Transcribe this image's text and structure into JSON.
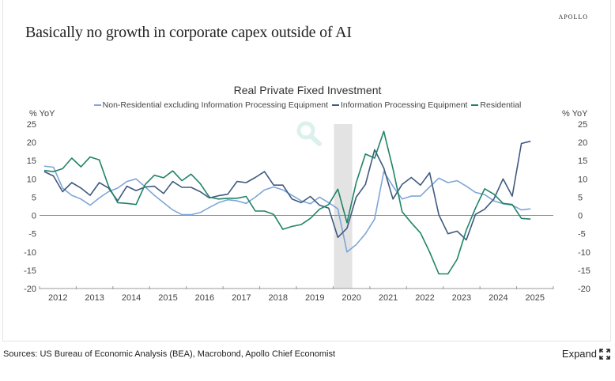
{
  "brand": "APOLLO",
  "headline": "Basically no growth in corporate capex outside of AI",
  "sources": "Sources: US Bureau of Economic Analysis (BEA), Macrobond, Apollo Chief Economist",
  "expand_label": "Expand",
  "colors": {
    "non_residential": "#7ea6d8",
    "info_processing": "#3f5a7f",
    "residential": "#1f8466",
    "recession_band": "#e3e3e3",
    "zero_line": "#8c8c8c",
    "watermark": "#d9f0ec"
  },
  "chart_data": {
    "type": "line",
    "title": "Real Private Fixed Investment",
    "ylabel_left": "% YoY",
    "ylabel_right": "% YoY",
    "xlabel": "",
    "ylim": [
      -20,
      25
    ],
    "yticks": [
      25,
      20,
      15,
      10,
      5,
      0,
      -5,
      -10,
      -15,
      -20
    ],
    "xlim": [
      "2012Q1",
      "2025Q4"
    ],
    "xticks": [
      "2012",
      "2013",
      "2014",
      "2015",
      "2016",
      "2017",
      "2018",
      "2019",
      "2020",
      "2021",
      "2022",
      "2023",
      "2024",
      "2025"
    ],
    "grid": false,
    "legend_position": "top",
    "shaded_regions": [
      {
        "label": "recession",
        "from": "2020Q1",
        "to": "2020Q2"
      }
    ],
    "x": [
      "2012Q1",
      "2012Q2",
      "2012Q3",
      "2012Q4",
      "2013Q1",
      "2013Q2",
      "2013Q3",
      "2013Q4",
      "2014Q1",
      "2014Q2",
      "2014Q3",
      "2014Q4",
      "2015Q1",
      "2015Q2",
      "2015Q3",
      "2015Q4",
      "2016Q1",
      "2016Q2",
      "2016Q3",
      "2016Q4",
      "2017Q1",
      "2017Q2",
      "2017Q3",
      "2017Q4",
      "2018Q1",
      "2018Q2",
      "2018Q3",
      "2018Q4",
      "2019Q1",
      "2019Q2",
      "2019Q3",
      "2019Q4",
      "2020Q1",
      "2020Q2",
      "2020Q3",
      "2020Q4",
      "2021Q1",
      "2021Q2",
      "2021Q3",
      "2021Q4",
      "2022Q1",
      "2022Q2",
      "2022Q3",
      "2022Q4",
      "2023Q1",
      "2023Q2",
      "2023Q3",
      "2023Q4",
      "2024Q1",
      "2024Q2",
      "2024Q3",
      "2024Q4",
      "2025Q1",
      "2025Q2"
    ],
    "series": [
      {
        "name": "Non-Residential excluding Information Processing Equipment",
        "color_key": "non_residential",
        "values": [
          13.5,
          13.2,
          7.5,
          5.5,
          4.5,
          2.8,
          4.8,
          6.5,
          7.5,
          9.3,
          10.0,
          7.8,
          5.5,
          3.5,
          1.5,
          0.2,
          0.2,
          0.8,
          2.2,
          3.5,
          4.3,
          4.0,
          3.3,
          5.0,
          7.0,
          7.8,
          7.0,
          5.5,
          4.0,
          3.2,
          5.0,
          3.5,
          1.8,
          -10.0,
          -8.0,
          -5.0,
          -1.0,
          12.0,
          8.0,
          4.5,
          5.3,
          5.3,
          7.8,
          10.2,
          9.0,
          9.5,
          8.0,
          6.3,
          5.7,
          4.0,
          3.2,
          2.8,
          1.5,
          1.8
        ]
      },
      {
        "name": "Information Processing Equipment",
        "color_key": "info_processing",
        "values": [
          12.0,
          10.8,
          6.5,
          9.0,
          7.5,
          5.5,
          9.0,
          7.5,
          4.0,
          8.0,
          6.8,
          7.8,
          8.0,
          6.0,
          9.3,
          7.7,
          7.7,
          6.5,
          4.8,
          5.4,
          5.8,
          9.3,
          9.0,
          10.4,
          12.0,
          8.3,
          8.3,
          4.5,
          3.5,
          5.2,
          2.8,
          2.0,
          -6.0,
          -3.5,
          5.0,
          8.5,
          18.0,
          13.0,
          4.5,
          8.5,
          10.4,
          8.3,
          11.7,
          0.2,
          -5.0,
          -4.3,
          -6.7,
          0.3,
          1.7,
          4.5,
          10.0,
          5.3,
          19.7,
          20.3
        ]
      },
      {
        "name": "Residential",
        "color_key": "residential",
        "values": [
          12.3,
          12.0,
          12.8,
          15.7,
          13.3,
          16.0,
          15.2,
          8.0,
          3.5,
          3.3,
          3.0,
          8.5,
          11.0,
          10.3,
          12.2,
          9.5,
          11.3,
          8.7,
          5.0,
          4.5,
          4.7,
          4.7,
          5.2,
          1.2,
          1.2,
          0.3,
          -3.8,
          -3.0,
          -2.5,
          -0.8,
          1.7,
          3.0,
          7.2,
          -2.0,
          9.0,
          16.8,
          15.7,
          23.0,
          12.8,
          1.0,
          -2.0,
          -4.8,
          -10.0,
          -16.0,
          -16.0,
          -12.0,
          -4.0,
          2.0,
          7.3,
          5.8,
          3.3,
          3.0,
          -0.8,
          -1.0
        ]
      }
    ]
  }
}
